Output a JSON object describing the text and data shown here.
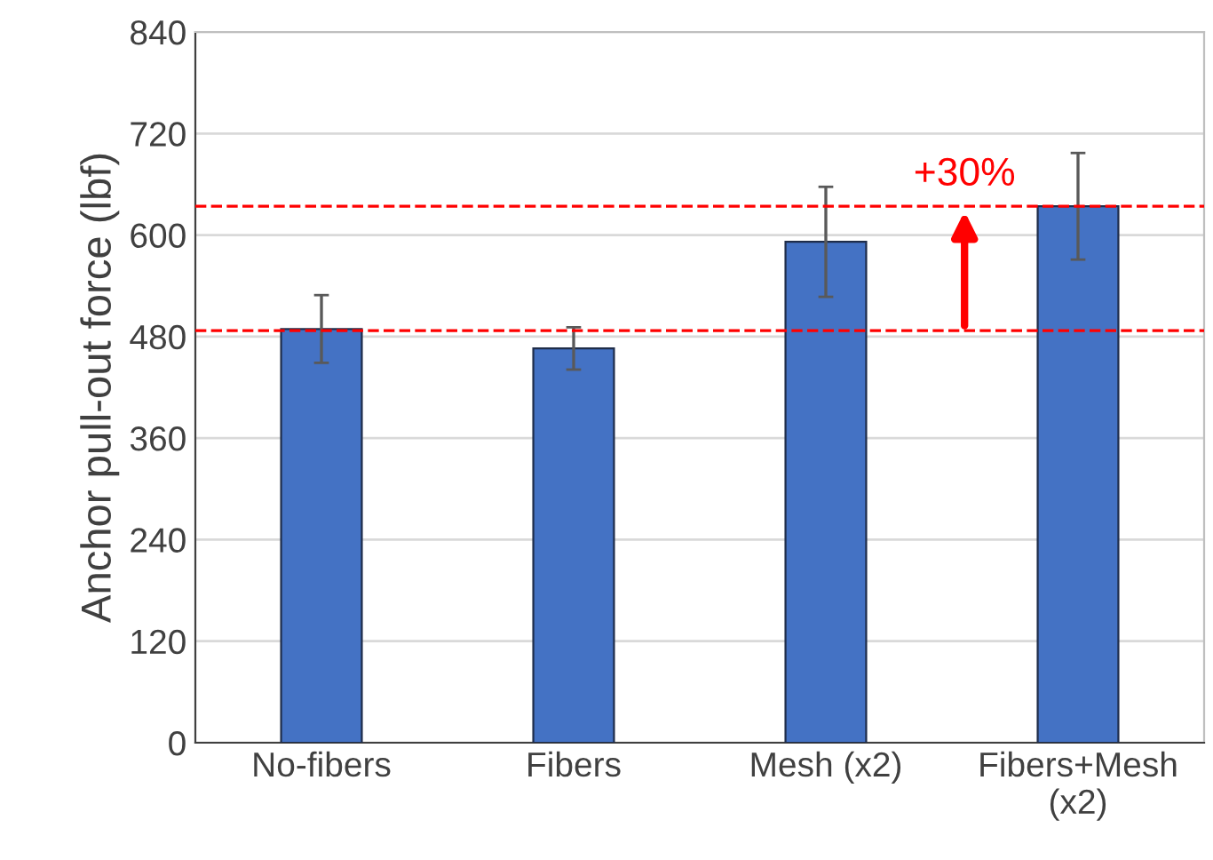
{
  "chart_data": {
    "type": "bar",
    "ylabel": "Anchor pull-out force (lbf)",
    "categories": [
      "No-fibers",
      "Fibers",
      "Mesh (x2)",
      "Fibers+Mesh\n(x2)"
    ],
    "values": [
      489,
      466,
      592,
      634
    ],
    "color": "#4472c4",
    "errors": [
      40,
      25,
      65,
      63
    ],
    "ylim": [
      0,
      840
    ],
    "yticks": [
      0,
      120,
      240,
      360,
      480,
      600,
      720,
      840
    ],
    "grid": "y",
    "ref_lines": [
      {
        "axis": "y",
        "value": 487,
        "color": "#ff0000",
        "line_style": "dashed"
      },
      {
        "axis": "y",
        "value": 634,
        "color": "#ff0000",
        "line_style": "dashed"
      }
    ],
    "annotations": [
      {
        "text": "+30%",
        "y": 634
      }
    ]
  }
}
